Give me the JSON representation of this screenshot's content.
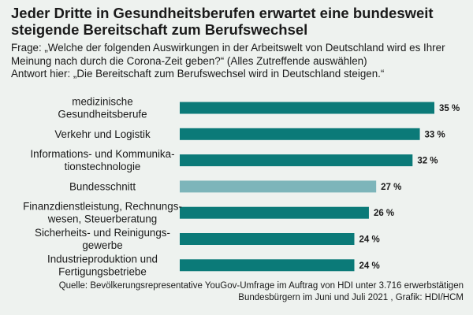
{
  "title": "Jeder Dritte in Gesundheitsberufen erwartet eine bundesweit steigende Bereitschaft zum Berufswechsel",
  "question": "Frage: „Welche der folgenden Auswirkungen in der Arbeitswelt von Deutschland wird es Ihrer Meinung nach durch die Corona-Zeit geben?“ (Alles Zutreffende auswählen)",
  "answer": "Antwort hier: „Die Bereitschaft zum Berufswechsel wird in Deutschland steigen.“",
  "source": "Quelle: Bevölkerungsrepresentative YouGov-Umfrage im Auftrag von HDI unter 3.716 erwerbstätigen Bundesbürgern im Juni und Juli 2021 , Grafik: HDI/HCM",
  "colors": {
    "bar": "#0b7a78",
    "highlight": "#7db5ba",
    "background": "#eef2ef"
  },
  "chart_data": {
    "type": "bar",
    "orientation": "horizontal",
    "unit": "%",
    "categories": [
      [
        "medizinische",
        "Gesundheitsberufe"
      ],
      [
        "Verkehr und Logistik"
      ],
      [
        "Informations- und Kommunika-",
        "tionstechnologie"
      ],
      [
        "Bundesschnitt"
      ],
      [
        "Finanzdienstleistung, Rechnungs-",
        "wesen, Steuerberatung"
      ],
      [
        "Sicherheits- und Reinigungs-",
        "gewerbe"
      ],
      [
        "Industrieproduktion und",
        "Fertigungsbetriebe"
      ]
    ],
    "values": [
      35,
      33,
      32,
      27,
      26,
      24,
      24
    ],
    "value_labels": [
      "35 %",
      "33 %",
      "32 %",
      "27 %",
      "26 %",
      "24 %",
      "24 %"
    ],
    "highlighted_index": 3,
    "xlim": [
      0,
      35
    ],
    "grid": false,
    "legend": "none"
  }
}
